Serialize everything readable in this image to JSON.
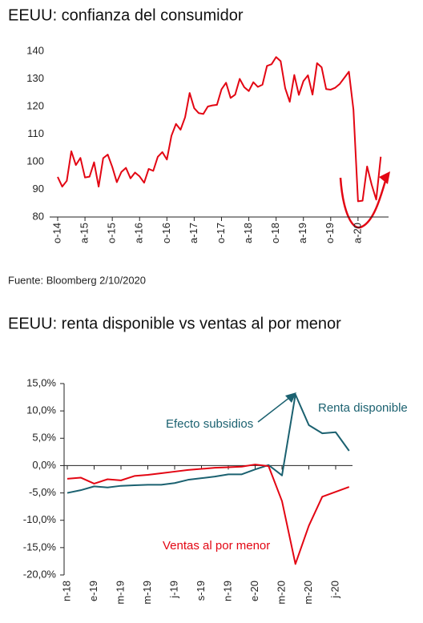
{
  "chart_data": [
    {
      "type": "line",
      "title": "EEUU: confianza del consumidor",
      "source": "Fuente: Bloomberg 2/10/2020",
      "categories": [
        "o-14",
        null,
        null,
        null,
        null,
        null,
        "a-15",
        null,
        null,
        null,
        null,
        null,
        "o-15",
        null,
        null,
        null,
        null,
        null,
        "a-16",
        null,
        null,
        null,
        null,
        null,
        "o-16",
        null,
        null,
        null,
        null,
        null,
        "a-17",
        null,
        null,
        null,
        null,
        null,
        "o-17",
        null,
        null,
        null,
        null,
        null,
        "a-18",
        null,
        null,
        null,
        null,
        null,
        "o-18",
        null,
        null,
        null,
        null,
        null,
        "a-19",
        null,
        null,
        null,
        null,
        null,
        "o-19",
        null,
        null,
        null,
        null,
        null,
        "a-20",
        null,
        null,
        null,
        null,
        null
      ],
      "values": [
        94.5,
        91.0,
        93.1,
        103.8,
        98.8,
        101.4,
        94.3,
        94.6,
        99.8,
        91.0,
        101.3,
        102.6,
        98.1,
        92.6,
        96.3,
        97.8,
        94.0,
        96.1,
        94.7,
        92.4,
        97.4,
        96.7,
        101.8,
        103.5,
        100.8,
        109.4,
        113.7,
        111.6,
        116.1,
        124.9,
        119.4,
        117.6,
        117.3,
        120.0,
        120.4,
        120.6,
        126.2,
        128.6,
        123.1,
        124.3,
        130.0,
        127.0,
        125.6,
        128.8,
        127.1,
        127.9,
        134.7,
        135.3,
        137.9,
        136.4,
        126.6,
        121.7,
        131.4,
        124.2,
        129.2,
        131.3,
        124.3,
        135.7,
        134.2,
        126.3,
        126.1,
        126.8,
        128.2,
        130.4,
        132.6,
        118.8,
        85.7,
        85.9,
        98.3,
        91.7,
        86.3,
        101.8
      ],
      "color": "#e30613",
      "ylim": [
        80,
        140
      ],
      "yticks": [
        80,
        90,
        100,
        110,
        120,
        130,
        140
      ],
      "grid": false
    },
    {
      "type": "line",
      "title": "EEUU: renta disponible vs ventas al por menor",
      "annotation": "Efecto subsidios",
      "categories": [
        "n-18",
        null,
        "e-19",
        null,
        "m-19",
        null,
        "m-19",
        null,
        "j-19",
        null,
        "s-19",
        null,
        "n-19",
        null,
        "e-20",
        null,
        "m-20",
        null,
        "m-20",
        null,
        "j-20",
        null
      ],
      "series": [
        {
          "name": "Renta disponible",
          "color": "#1b6170",
          "values": [
            -5.0,
            -4.5,
            -3.8,
            -4.0,
            -3.7,
            -3.6,
            -3.5,
            -3.5,
            -3.2,
            -2.6,
            -2.3,
            -2.0,
            -1.6,
            -1.6,
            -0.7,
            0.1,
            -1.8,
            13.0,
            7.4,
            5.9,
            6.1,
            2.7
          ]
        },
        {
          "name": "Ventas al por menor",
          "color": "#e30613",
          "values": [
            -2.4,
            -2.2,
            -3.3,
            -2.5,
            -2.7,
            -1.9,
            -1.7,
            -1.4,
            -1.1,
            -0.8,
            -0.6,
            -0.4,
            -0.3,
            -0.2,
            0.2,
            -0.1,
            -6.5,
            -18.0,
            -11.0,
            -5.7,
            -4.8,
            -3.9
          ]
        }
      ],
      "ylim": [
        -20,
        15
      ],
      "yticks": [
        {
          "value": -20,
          "label": "-20,0%"
        },
        {
          "value": -15,
          "label": "-15,0%"
        },
        {
          "value": -10,
          "label": "-10,0%"
        },
        {
          "value": -5,
          "label": "-5,0%"
        },
        {
          "value": 0,
          "label": "0,0%"
        },
        {
          "value": 5,
          "label": "5,0%"
        },
        {
          "value": 10,
          "label": "10,0%"
        },
        {
          "value": 15,
          "label": "15,0%"
        }
      ],
      "grid": false
    }
  ]
}
